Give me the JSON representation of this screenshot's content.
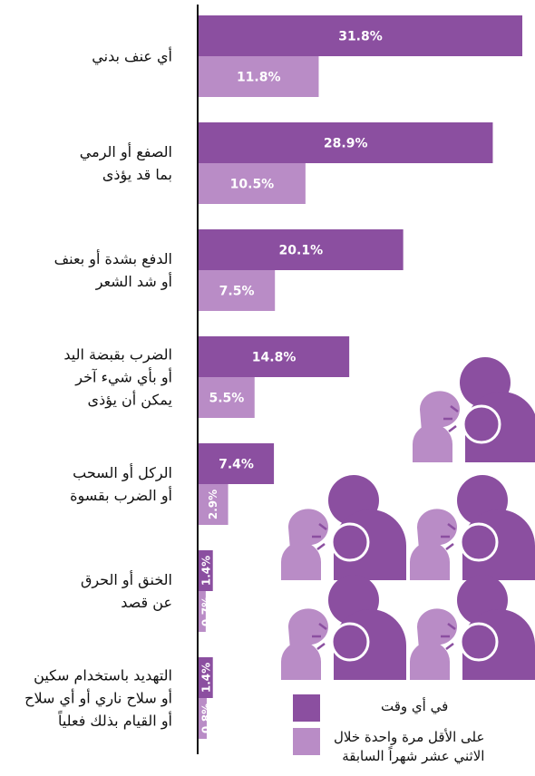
{
  "chart_data": {
    "type": "bar",
    "orientation": "horizontal",
    "categories": [
      "أي عنف بدني",
      "الصفع أو الرمي\nبما قد يؤذى",
      "الدفع بشدة أو بعنف\nأو شد الشعر",
      "الضرب بقبضة اليد\nأو بأي شيء آخر\nيمكن أن يؤذى",
      "الركل أو السحب\nأو الضرب بقسوة",
      "الخنق أو الحرق\nعن قصد",
      "التهديد باستخدام سكين\nأو سلاح ناري أو أي سلاح\nأو القيام بذلك فعلياً"
    ],
    "series": [
      {
        "name": "في أي وقت",
        "color": "#8b4fa0",
        "values": [
          31.8,
          28.9,
          20.1,
          14.8,
          7.4,
          1.4,
          1.4
        ],
        "value_labels": [
          "31.8%",
          "28.9%",
          "20.1%",
          "14.8%",
          "7.4%",
          "1.4%",
          "1.4%"
        ]
      },
      {
        "name": "على الأقل مرة واحدة خلال\nالاثني عشر شهراً السابقة",
        "color": "#b98cc6",
        "values": [
          11.8,
          10.5,
          7.5,
          5.5,
          2.9,
          0.7,
          0.8
        ],
        "value_labels": [
          "11.8%",
          "10.5%",
          "7.5%",
          "5.5%",
          "2.9%",
          "0.7%",
          "0.8%"
        ]
      }
    ]
  }
}
